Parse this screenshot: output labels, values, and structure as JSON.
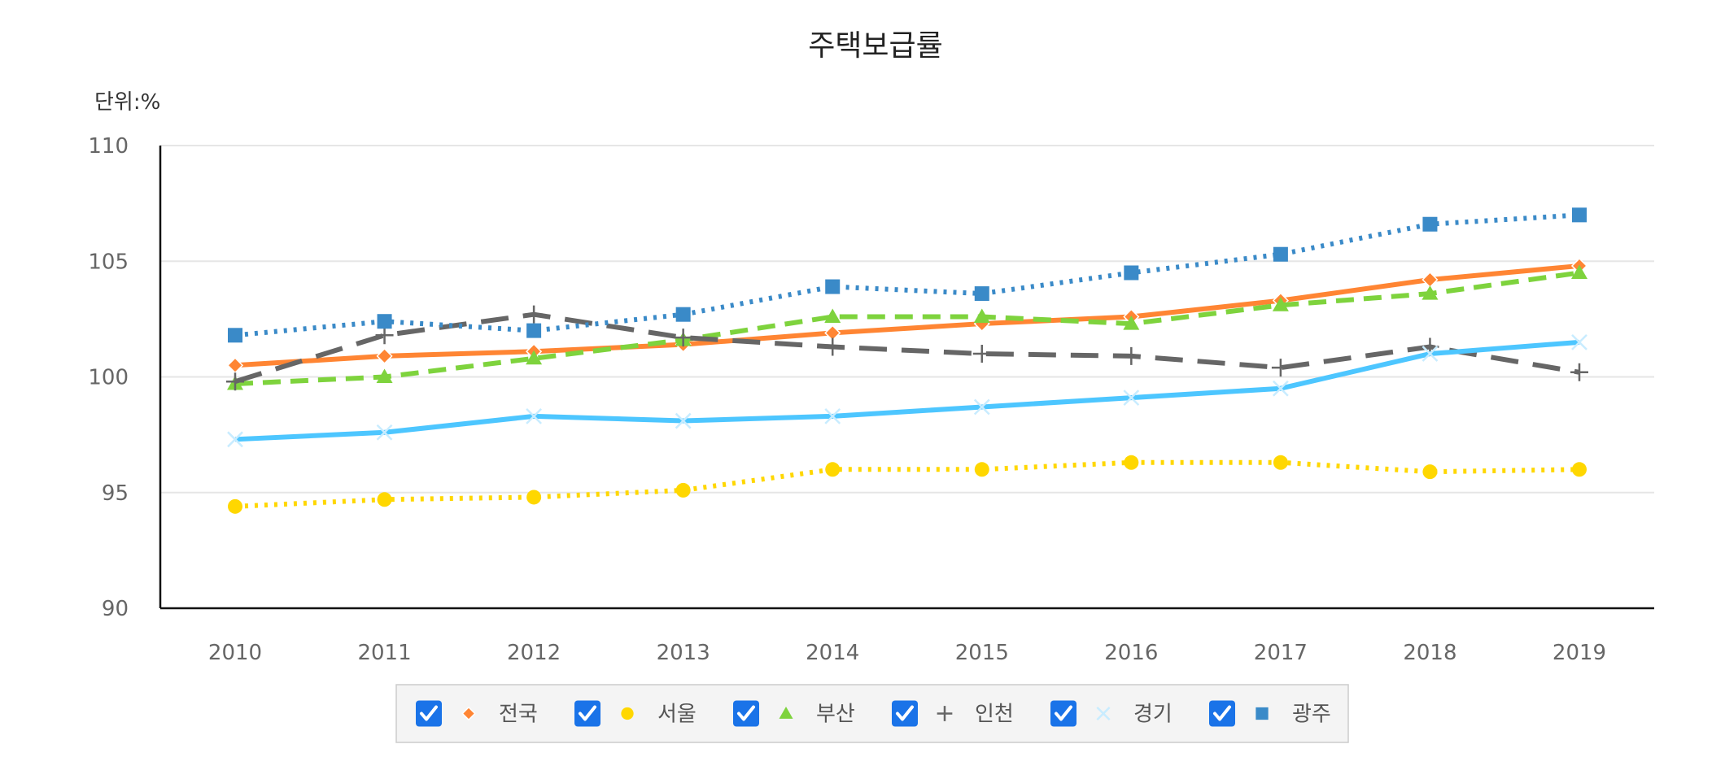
{
  "chart_data": {
    "type": "line",
    "title": "주택보급률",
    "unit_label": "단위:%",
    "xlabel": "",
    "ylabel": "",
    "ylim": [
      90,
      110
    ],
    "yticks": [
      90,
      95,
      100,
      105,
      110
    ],
    "categories": [
      "2010",
      "2011",
      "2012",
      "2013",
      "2014",
      "2015",
      "2016",
      "2017",
      "2018",
      "2019"
    ],
    "grid": true,
    "legend_position": "bottom",
    "series": [
      {
        "name": "전국",
        "color": "#ff8533",
        "marker": "diamond",
        "dash": "solid",
        "checked": true,
        "values": [
          100.5,
          100.9,
          101.1,
          101.4,
          101.9,
          102.3,
          102.6,
          103.3,
          104.2,
          104.8
        ]
      },
      {
        "name": "서울",
        "color": "#ffd700",
        "marker": "circle",
        "dash": "dotted",
        "checked": true,
        "values": [
          94.4,
          94.7,
          94.8,
          95.1,
          96.0,
          96.0,
          96.3,
          96.3,
          95.9,
          96.0
        ]
      },
      {
        "name": "부산",
        "color": "#7ed33d",
        "marker": "triangle",
        "dash": "dashed",
        "checked": true,
        "values": [
          99.7,
          100.0,
          100.8,
          101.6,
          102.6,
          102.6,
          102.3,
          103.1,
          103.6,
          104.5
        ]
      },
      {
        "name": "인천",
        "color": "#666666",
        "marker": "plus",
        "dash": "longdash",
        "checked": true,
        "values": [
          99.8,
          101.8,
          102.7,
          101.7,
          101.3,
          101.0,
          100.9,
          100.4,
          101.3,
          100.2
        ]
      },
      {
        "name": "경기",
        "color": "#4dc6ff",
        "marker": "x",
        "dash": "solid",
        "checked": true,
        "values": [
          97.3,
          97.6,
          98.3,
          98.1,
          98.3,
          98.7,
          99.1,
          99.5,
          101.0,
          101.5
        ]
      },
      {
        "name": "광주",
        "color": "#3a8ac8",
        "marker": "square",
        "dash": "dotted",
        "checked": true,
        "values": [
          101.8,
          102.4,
          102.0,
          102.7,
          103.9,
          103.6,
          104.5,
          105.3,
          106.6,
          107.0
        ]
      }
    ]
  }
}
